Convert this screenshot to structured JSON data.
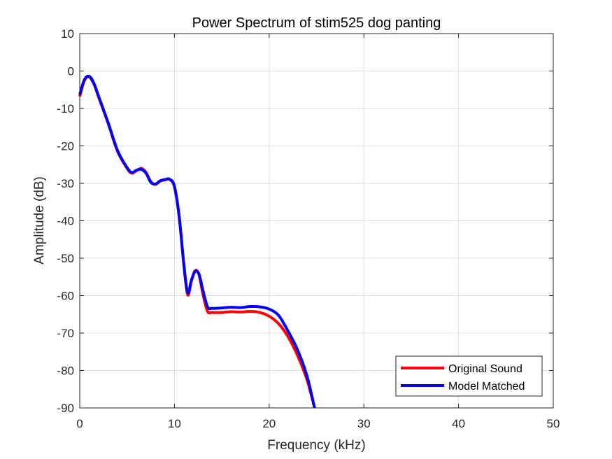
{
  "chart_data": {
    "type": "line",
    "title": "Power Spectrum of stim525 dog panting",
    "xlabel": "Frequency (kHz)",
    "ylabel": "Amplitude (dB)",
    "xlim": [
      0,
      50
    ],
    "ylim": [
      -90,
      10
    ],
    "xticks": [
      0,
      10,
      20,
      30,
      40,
      50
    ],
    "xtick_labels": [
      "0",
      "10",
      "20",
      "30",
      "40",
      "50"
    ],
    "yticks": [
      10,
      0,
      -10,
      -20,
      -30,
      -40,
      -50,
      -60,
      -70,
      -80,
      -90
    ],
    "ytick_labels": [
      "10",
      "0",
      "-10",
      "-20",
      "-30",
      "-40",
      "-50",
      "-60",
      "-70",
      "-80",
      "-90"
    ],
    "grid": true,
    "legend_position": "bottom-right",
    "series": [
      {
        "name": "Original Sound",
        "color": "#ff0000",
        "x": [
          0,
          0.5,
          1.0,
          1.5,
          2.0,
          3.0,
          4.0,
          5.0,
          5.5,
          6.0,
          6.5,
          7.0,
          7.5,
          8.0,
          8.5,
          9.0,
          9.5,
          10.0,
          10.5,
          11.0,
          11.4,
          11.8,
          12.2,
          12.6,
          13.0,
          13.5,
          14.0,
          15.0,
          16.0,
          17.0,
          18.0,
          19.0,
          20.0,
          21.0,
          22.0,
          23.0,
          24.0,
          24.8
        ],
        "y": [
          -6.8,
          -2.5,
          -1.6,
          -3.5,
          -7,
          -14,
          -21.5,
          -26,
          -27.3,
          -26.6,
          -26.0,
          -27.1,
          -29.5,
          -30.3,
          -29.4,
          -29.1,
          -29.0,
          -31,
          -39,
          -52,
          -59.8,
          -56,
          -53.3,
          -54.5,
          -59.5,
          -64.2,
          -64.5,
          -64.5,
          -64.3,
          -64.4,
          -64.2,
          -64.5,
          -65.5,
          -67.5,
          -71,
          -76,
          -82.5,
          -90
        ]
      },
      {
        "name": "Model Matched",
        "color": "#0000ff",
        "x": [
          0,
          0.5,
          1.0,
          1.5,
          2.0,
          3.0,
          4.0,
          5.0,
          5.5,
          6.0,
          6.5,
          7.0,
          7.5,
          8.0,
          8.5,
          9.0,
          9.5,
          10.0,
          10.5,
          11.0,
          11.4,
          11.8,
          12.2,
          12.6,
          13.0,
          13.5,
          14.0,
          15.0,
          16.0,
          17.0,
          18.0,
          19.0,
          20.0,
          21.0,
          22.0,
          23.0,
          24.0,
          24.8
        ],
        "y": [
          -6.3,
          -2.3,
          -1.4,
          -3.3,
          -6.8,
          -13.8,
          -21.3,
          -25.8,
          -27.1,
          -26.5,
          -26.3,
          -27.3,
          -29.7,
          -30.2,
          -29.3,
          -29.0,
          -28.9,
          -30.8,
          -38.8,
          -51.8,
          -59.2,
          -55.8,
          -53.5,
          -54.3,
          -58.5,
          -63.0,
          -63.4,
          -63.3,
          -63.1,
          -63.2,
          -62.9,
          -63.0,
          -63.6,
          -65.3,
          -69.5,
          -74.5,
          -81.5,
          -90
        ]
      }
    ]
  }
}
